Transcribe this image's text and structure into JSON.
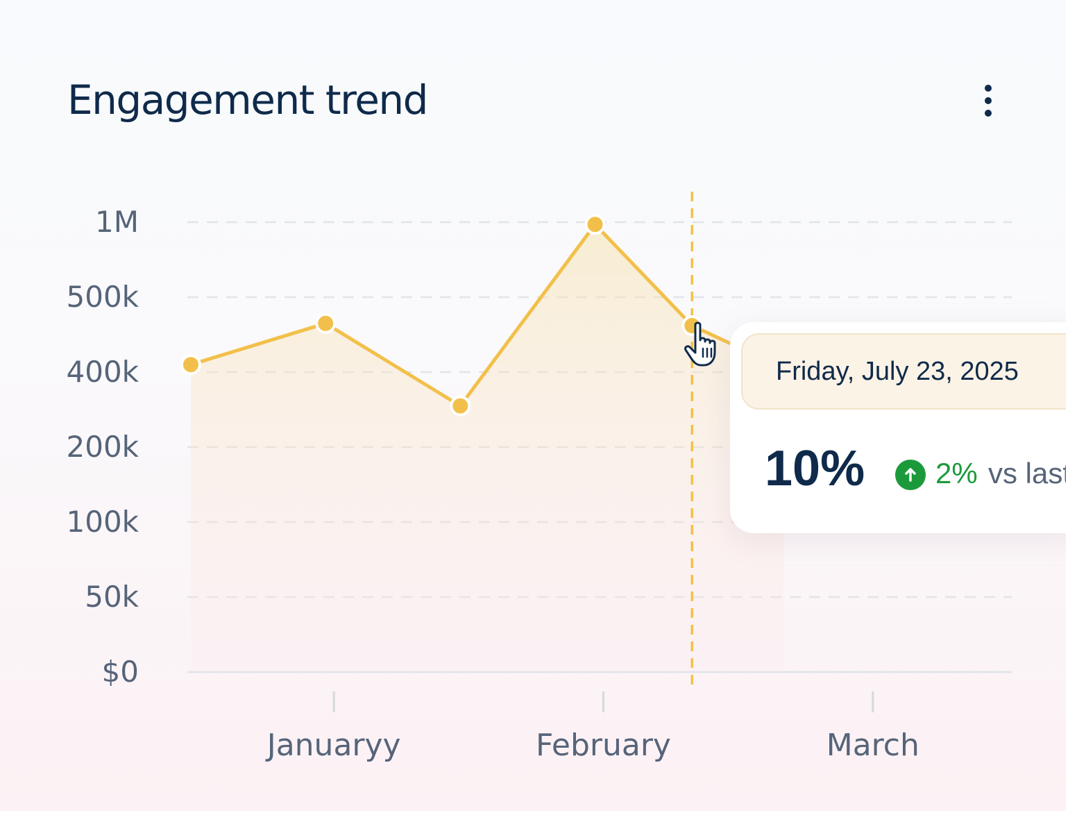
{
  "card": {
    "title": "Engagement trend",
    "menu_icon": "more-vertical-icon"
  },
  "colors": {
    "line": "#f2c04a",
    "title": "#0f2a4a",
    "axis_text": "#566479",
    "positive": "#1c9a3b"
  },
  "chart_data": {
    "type": "line",
    "title": "Engagement trend",
    "y_ticks": [
      "$0",
      "50k",
      "100k",
      "200k",
      "400k",
      "500k",
      "1M"
    ],
    "x_ticks": [
      "Januaryy",
      "February",
      "March"
    ],
    "x_tick_positions": [
      1,
      3,
      5
    ],
    "x_range": [
      0,
      6
    ],
    "points_y_tick_index": [
      4.1,
      4.65,
      3.55,
      5.97,
      4.62,
      4.05
    ],
    "points_x": [
      0,
      1,
      2,
      3,
      3.72,
      4.4
    ],
    "highlight_x": 3.72,
    "grid": true,
    "area_fill": true
  },
  "tooltip": {
    "date": "Friday, July 23, 2025",
    "value": "10%",
    "change_icon": "arrow-up-circle-icon",
    "change": "2%",
    "compare": "vs last"
  },
  "cursor_icon": "hand-pointer-icon"
}
